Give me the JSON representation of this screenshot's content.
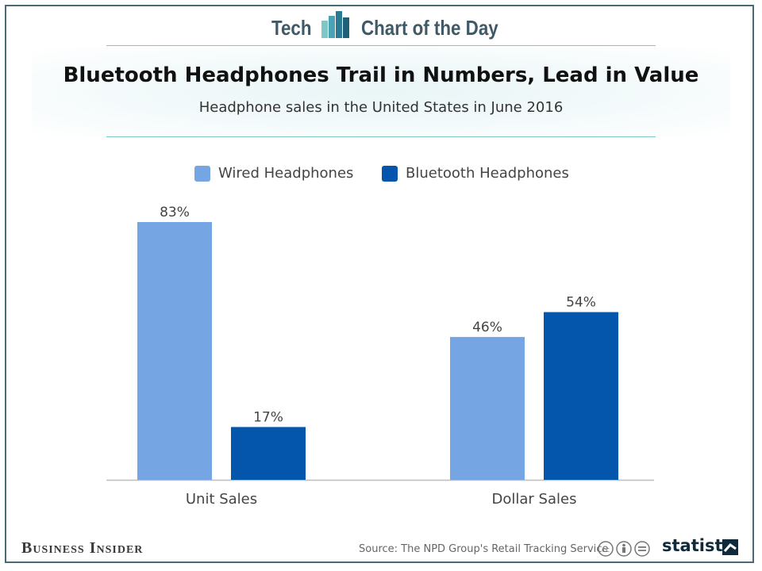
{
  "header": {
    "left_word": "Tech",
    "right_words": "Chart of the Day",
    "logo_icon": "bar-chart-logo-icon"
  },
  "colors": {
    "wired": "#75a6e3",
    "bluetooth": "#0356ab",
    "accent_rule": "#7fc7c6",
    "frame": "#4a6a78"
  },
  "chart_data": {
    "type": "bar",
    "title": "Bluetooth Headphones Trail in Numbers, Lead in Value",
    "subtitle": "Headphone sales in the United States in June 2016",
    "categories": [
      "Unit Sales",
      "Dollar Sales"
    ],
    "series": [
      {
        "name": "Wired Headphones",
        "values": [
          83,
          46
        ],
        "labels": [
          "83%",
          "46%"
        ]
      },
      {
        "name": "Bluetooth Headphones",
        "values": [
          17,
          54
        ],
        "labels": [
          "17%",
          "54%"
        ]
      }
    ],
    "xlabel": "",
    "ylabel": "",
    "ylim": [
      0,
      83
    ],
    "grid": false,
    "legend": "top-center"
  },
  "footer": {
    "publisher": "Business Insider",
    "source": "Source: The NPD Group's Retail Tracking Service",
    "license_icons": "creative-commons-icons",
    "brand": "statista"
  }
}
